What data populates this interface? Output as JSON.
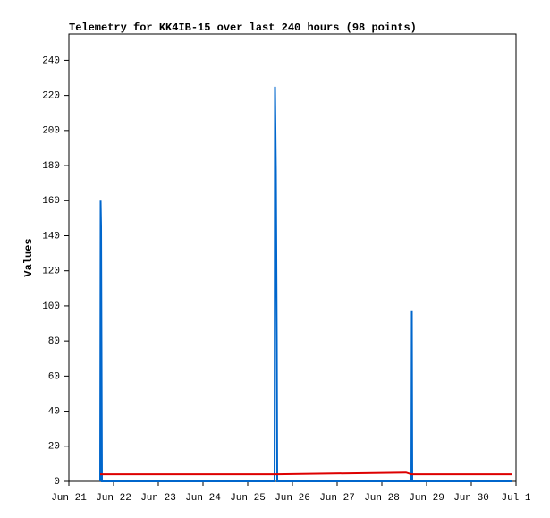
{
  "chart_data": {
    "type": "line",
    "title": "Telemetry for KK4IB-15 over last 240 hours (98 points)",
    "y_label": "Values",
    "x": [
      0.7,
      0.71,
      0.72,
      0.74,
      4.6,
      4.61,
      4.63,
      4.65,
      4.66,
      7.54,
      7.66,
      7.67,
      7.68,
      9.9
    ],
    "series": [
      {
        "color": "#0066cc",
        "values": [
          0,
          160,
          145,
          0,
          0,
          225,
          177,
          80,
          0,
          0,
          0,
          97,
          0,
          0
        ]
      },
      {
        "color": "#dd0000",
        "values": [
          4,
          4,
          4,
          4,
          4,
          4,
          4,
          4,
          4,
          5,
          4,
          4,
          4,
          4
        ]
      }
    ],
    "xlim": [
      0,
      10
    ],
    "xticks": [
      {
        "value": 0,
        "label": "Jun 21"
      },
      {
        "value": 1,
        "label": "Jun 22"
      },
      {
        "value": 2,
        "label": "Jun 23"
      },
      {
        "value": 3,
        "label": "Jun 24"
      },
      {
        "value": 4,
        "label": "Jun 25"
      },
      {
        "value": 5,
        "label": "Jun 26"
      },
      {
        "value": 6,
        "label": "Jun 27"
      },
      {
        "value": 7,
        "label": "Jun 28"
      },
      {
        "value": 8,
        "label": "Jun 29"
      },
      {
        "value": 9,
        "label": "Jun 30"
      },
      {
        "value": 10,
        "label": "Jul 1"
      }
    ],
    "ylim": [
      0,
      255
    ],
    "yticks": [
      0,
      20,
      40,
      60,
      80,
      100,
      120,
      140,
      160,
      180,
      200,
      220,
      240
    ],
    "grid": false
  }
}
